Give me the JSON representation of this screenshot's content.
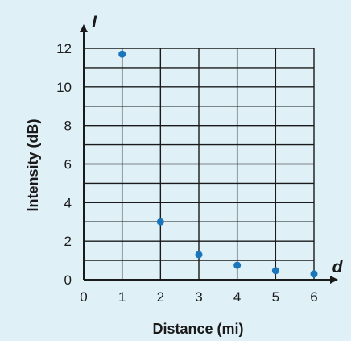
{
  "chart_data": {
    "type": "scatter",
    "xlabel": "Distance (mi)",
    "ylabel": "Intensity (dB)",
    "x_variable": "d",
    "y_variable": "I",
    "xlim": [
      0,
      6
    ],
    "ylim": [
      0,
      12
    ],
    "x_ticks": [
      "0",
      "1",
      "2",
      "3",
      "4",
      "5",
      "6"
    ],
    "y_ticks": [
      "0",
      "2",
      "4",
      "6",
      "8",
      "10",
      "12"
    ],
    "grid": true,
    "point_color": "#1b75bb",
    "background_color": "#dff0f7",
    "points": [
      {
        "x": 1,
        "y": 11.7
      },
      {
        "x": 2,
        "y": 3.0
      },
      {
        "x": 3,
        "y": 1.3
      },
      {
        "x": 4,
        "y": 0.75
      },
      {
        "x": 5,
        "y": 0.47
      },
      {
        "x": 6,
        "y": 0.3
      }
    ]
  }
}
